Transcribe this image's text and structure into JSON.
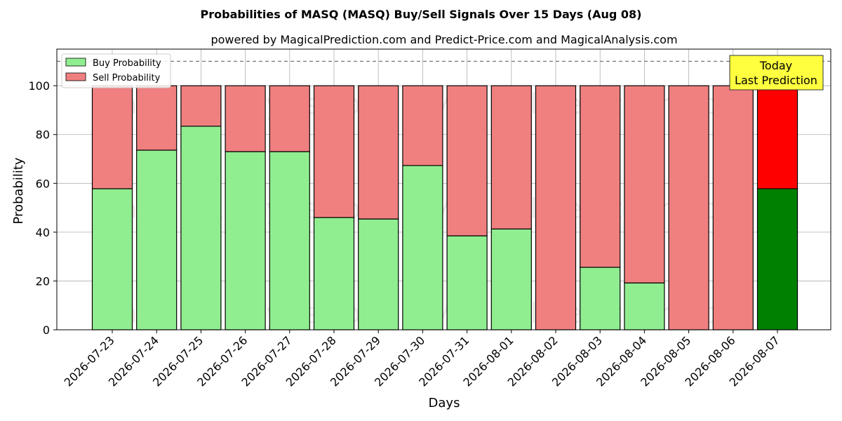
{
  "chart_data": {
    "type": "bar",
    "stacked": true,
    "title": "Probabilities of MASQ (MASQ) Buy/Sell Signals Over 15 Days (Aug 08)",
    "subtitle": "powered by MagicalPrediction.com and Predict-Price.com and MagicalAnalysis.com",
    "xlabel": "Days",
    "ylabel": "Probability",
    "ylim": [
      0,
      115
    ],
    "yticks": [
      0,
      20,
      40,
      60,
      80,
      100
    ],
    "grid": true,
    "reference_line": 110,
    "legend_position": "top-left",
    "categories": [
      "2026-07-23",
      "2026-07-24",
      "2026-07-25",
      "2026-07-26",
      "2026-07-27",
      "2026-07-28",
      "2026-07-29",
      "2026-07-30",
      "2026-07-31",
      "2026-08-01",
      "2026-08-02",
      "2026-08-03",
      "2026-08-04",
      "2026-08-05",
      "2026-08-06",
      "2026-08-07"
    ],
    "series": [
      {
        "name": "Buy Probability",
        "color": "#90ee90",
        "highlight_color": "#008000",
        "values": [
          57.8,
          73.6,
          83.4,
          73.0,
          73.0,
          46.0,
          45.4,
          67.3,
          38.5,
          41.3,
          0,
          25.6,
          19.2,
          0,
          0,
          57.8
        ]
      },
      {
        "name": "Sell Probability",
        "color": "#f08080",
        "highlight_color": "#ff0000",
        "values": [
          42.2,
          26.4,
          16.6,
          27.0,
          27.0,
          54.0,
          54.6,
          32.7,
          61.5,
          58.7,
          100,
          74.4,
          80.8,
          100,
          100,
          42.2
        ]
      }
    ],
    "annotation": {
      "line1": "Today",
      "line2": "Last Prediction",
      "color": "#ffff40"
    },
    "watermarks": [
      "MagicalAnalysis.com",
      "MagicalPrediction.com"
    ]
  }
}
